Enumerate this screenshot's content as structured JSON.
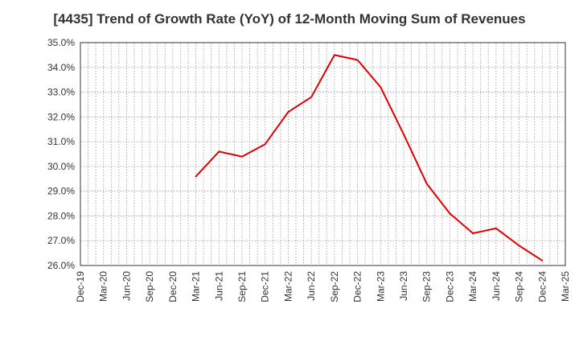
{
  "chart_data": {
    "type": "line",
    "title": "[4435]  Trend of Growth Rate (YoY) of 12-Month Moving Sum of Revenues",
    "xlabel": "",
    "ylabel": "",
    "x_ticks": [
      "Dec-19",
      "Mar-20",
      "Jun-20",
      "Sep-20",
      "Dec-20",
      "Mar-21",
      "Jun-21",
      "Sep-21",
      "Dec-21",
      "Mar-22",
      "Jun-22",
      "Sep-22",
      "Dec-22",
      "Mar-23",
      "Jun-23",
      "Sep-23",
      "Dec-23",
      "Mar-24",
      "Jun-24",
      "Sep-24",
      "Dec-24",
      "Mar-25"
    ],
    "y_ticks": [
      "26.0%",
      "27.0%",
      "28.0%",
      "29.0%",
      "30.0%",
      "31.0%",
      "32.0%",
      "33.0%",
      "34.0%",
      "35.0%"
    ],
    "ylim": [
      26.0,
      35.0
    ],
    "grid": true,
    "series": [
      {
        "color": "#e00000",
        "x": [
          "Mar-21",
          "Jun-21",
          "Sep-21",
          "Dec-21",
          "Mar-22",
          "Jun-22",
          "Sep-22",
          "Dec-22",
          "Mar-23",
          "Jun-23",
          "Sep-23",
          "Dec-23",
          "Mar-24",
          "Jun-24",
          "Sep-24",
          "Dec-24"
        ],
        "values": [
          29.6,
          30.6,
          30.4,
          30.9,
          32.2,
          32.8,
          34.5,
          34.3,
          33.2,
          31.3,
          29.3,
          28.1,
          27.3,
          27.5,
          26.8,
          26.2
        ]
      }
    ]
  }
}
